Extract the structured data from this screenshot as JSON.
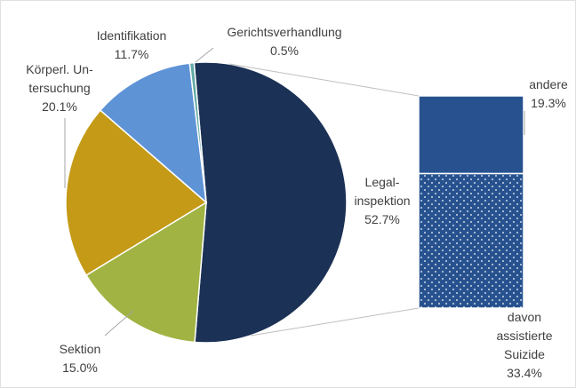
{
  "chart_data": {
    "type": "pie-of-bar",
    "categories": [
      "Legal-\ninspektion",
      "Sektion",
      "Körperl. Un-\ntersuchung",
      "Identifikation",
      "Gerichtsverhandlung"
    ],
    "values": [
      52.7,
      15.0,
      20.1,
      11.7,
      0.5
    ],
    "value_labels": [
      "52.7%",
      "15.0%",
      "20.1%",
      "11.7%",
      "0.5%"
    ],
    "colors": [
      "#1b3155",
      "#a1b343",
      "#c49a17",
      "#5e93d6",
      "#63aaa6"
    ],
    "breakdown": {
      "categories": [
        "andere",
        "davon\nassistierte\nSuizide"
      ],
      "values": [
        19.3,
        33.4
      ],
      "value_labels": [
        "19.3%",
        "33.4%"
      ],
      "colors": [
        "#27528f",
        "#27528f"
      ],
      "patterns": [
        "solid",
        "dots"
      ]
    }
  }
}
